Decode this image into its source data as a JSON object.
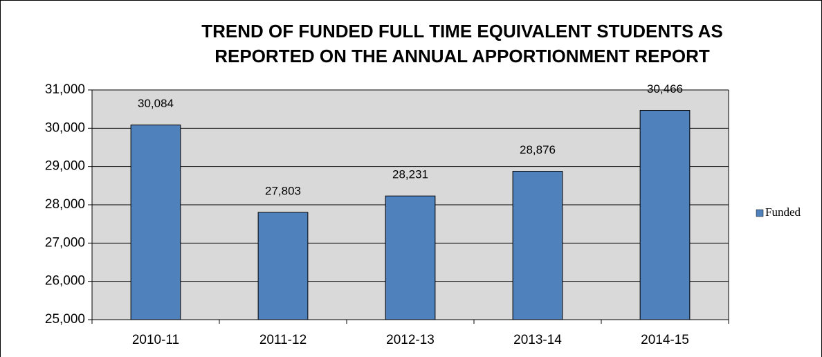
{
  "chart_data": {
    "type": "bar",
    "title": [
      "TREND OF FUNDED FULL TIME EQUIVALENT STUDENTS AS",
      "REPORTED ON THE ANNUAL APPORTIONMENT REPORT"
    ],
    "categories": [
      "2010-11",
      "2011-12",
      "2012-13",
      "2013-14",
      "2014-15"
    ],
    "series": [
      {
        "name": "Funded",
        "color": "#4f81bd",
        "values": [
          30084,
          27803,
          28231,
          28876,
          30466
        ],
        "value_labels": [
          "30,084",
          "27,803",
          "28,231",
          "28,876",
          "30,466"
        ]
      }
    ],
    "ylim": [
      25000,
      31000
    ],
    "yticks": [
      {
        "value": 25000,
        "label": "25,000"
      },
      {
        "value": 26000,
        "label": "26,000"
      },
      {
        "value": 27000,
        "label": "27,000"
      },
      {
        "value": 28000,
        "label": "28,000"
      },
      {
        "value": 29000,
        "label": "29,000"
      },
      {
        "value": 30000,
        "label": "30,000"
      },
      {
        "value": 31000,
        "label": "31,000"
      }
    ],
    "grid": true,
    "legend": "right"
  }
}
